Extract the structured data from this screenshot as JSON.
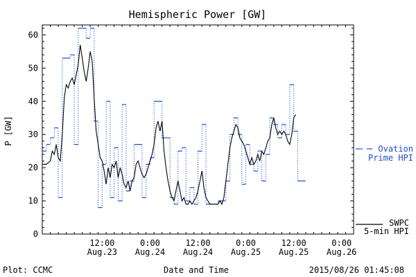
{
  "chart_data": {
    "type": "line",
    "title": "Hemispheric Power [GW]",
    "xlabel": "Date and Time",
    "ylabel": "P [GW]",
    "ylim": [
      0,
      63
    ],
    "yticks": [
      0,
      10,
      20,
      30,
      40,
      50,
      60
    ],
    "xlim": [
      "2015-08-22T21:00",
      "2015-08-26T03:00"
    ],
    "xticks": [
      {
        "t": "2015-08-23T12:00",
        "time": "12:00",
        "date": "Aug.23"
      },
      {
        "t": "2015-08-24T00:00",
        "time": "0:00",
        "date": "Aug.24"
      },
      {
        "t": "2015-08-24T12:00",
        "time": "12:00",
        "date": "Aug.24"
      },
      {
        "t": "2015-08-25T00:00",
        "time": "0:00",
        "date": "Aug.25"
      },
      {
        "t": "2015-08-25T12:00",
        "time": "12:00",
        "date": "Aug.25"
      },
      {
        "t": "2015-08-26T00:00",
        "time": "0:00",
        "date": "Aug.26"
      }
    ],
    "grid": false,
    "series": [
      {
        "name": "Ovation Prime HPI",
        "color": "#1f4fd0",
        "style": "dotted-step",
        "points": [
          [
            "2015-08-22T21:00",
            25
          ],
          [
            "2015-08-22T22:00",
            27
          ],
          [
            "2015-08-22T23:00",
            29
          ],
          [
            "2015-08-23T00:00",
            32
          ],
          [
            "2015-08-23T01:00",
            11
          ],
          [
            "2015-08-23T02:00",
            53
          ],
          [
            "2015-08-23T04:00",
            54
          ],
          [
            "2015-08-23T05:00",
            27
          ],
          [
            "2015-08-23T06:00",
            62
          ],
          [
            "2015-08-23T08:00",
            59
          ],
          [
            "2015-08-23T09:00",
            62
          ],
          [
            "2015-08-23T10:00",
            34
          ],
          [
            "2015-08-23T11:00",
            8
          ],
          [
            "2015-08-23T12:00",
            21
          ],
          [
            "2015-08-23T13:00",
            40
          ],
          [
            "2015-08-23T14:00",
            11
          ],
          [
            "2015-08-23T15:00",
            26
          ],
          [
            "2015-08-23T16:00",
            10
          ],
          [
            "2015-08-23T17:00",
            39
          ],
          [
            "2015-08-23T18:00",
            13
          ],
          [
            "2015-08-23T19:00",
            16
          ],
          [
            "2015-08-23T20:00",
            27
          ],
          [
            "2015-08-23T22:00",
            11
          ],
          [
            "2015-08-23T23:00",
            21
          ],
          [
            "2015-08-24T00:00",
            23
          ],
          [
            "2015-08-24T01:00",
            40
          ],
          [
            "2015-08-24T03:00",
            29
          ],
          [
            "2015-08-24T05:00",
            11
          ],
          [
            "2015-08-24T06:00",
            9
          ],
          [
            "2015-08-24T07:00",
            25
          ],
          [
            "2015-08-24T08:00",
            26
          ],
          [
            "2015-08-24T09:00",
            10
          ],
          [
            "2015-08-24T10:00",
            14
          ],
          [
            "2015-08-24T11:00",
            9
          ],
          [
            "2015-08-24T12:00",
            25
          ],
          [
            "2015-08-24T13:00",
            33
          ],
          [
            "2015-08-24T14:00",
            9
          ],
          [
            "2015-08-24T17:00",
            10
          ],
          [
            "2015-08-24T19:00",
            16
          ],
          [
            "2015-08-24T20:00",
            30
          ],
          [
            "2015-08-24T21:00",
            35
          ],
          [
            "2015-08-24T22:00",
            30
          ],
          [
            "2015-08-24T23:00",
            15
          ],
          [
            "2015-08-25T00:00",
            27
          ],
          [
            "2015-08-25T01:00",
            21
          ],
          [
            "2015-08-25T02:00",
            19
          ],
          [
            "2015-08-25T03:00",
            25
          ],
          [
            "2015-08-25T04:00",
            16
          ],
          [
            "2015-08-25T05:00",
            24
          ],
          [
            "2015-08-25T06:00",
            35
          ],
          [
            "2015-08-25T07:00",
            33
          ],
          [
            "2015-08-25T08:00",
            29
          ],
          [
            "2015-08-25T09:00",
            33
          ],
          [
            "2015-08-25T10:00",
            30
          ],
          [
            "2015-08-25T11:00",
            45
          ],
          [
            "2015-08-25T12:00",
            31
          ],
          [
            "2015-08-25T13:00",
            16
          ],
          [
            "2015-08-25T14:00",
            16
          ]
        ]
      },
      {
        "name": "SWPC 5-min HPI",
        "color": "#000000",
        "style": "solid",
        "points": [
          [
            "2015-08-22T21:00",
            21
          ],
          [
            "2015-08-22T22:00",
            21
          ],
          [
            "2015-08-22T23:00",
            22
          ],
          [
            "2015-08-22T23:30",
            25
          ],
          [
            "2015-08-23T00:00",
            24
          ],
          [
            "2015-08-23T00:30",
            27
          ],
          [
            "2015-08-23T01:00",
            23
          ],
          [
            "2015-08-23T01:30",
            22
          ],
          [
            "2015-08-23T02:00",
            30
          ],
          [
            "2015-08-23T02:30",
            41
          ],
          [
            "2015-08-23T03:00",
            45
          ],
          [
            "2015-08-23T03:30",
            44
          ],
          [
            "2015-08-23T04:00",
            46
          ],
          [
            "2015-08-23T04:30",
            47
          ],
          [
            "2015-08-23T05:00",
            45
          ],
          [
            "2015-08-23T05:30",
            48
          ],
          [
            "2015-08-23T06:00",
            51
          ],
          [
            "2015-08-23T06:30",
            57
          ],
          [
            "2015-08-23T07:00",
            53
          ],
          [
            "2015-08-23T07:30",
            49
          ],
          [
            "2015-08-23T08:00",
            46
          ],
          [
            "2015-08-23T08:30",
            50
          ],
          [
            "2015-08-23T09:00",
            55
          ],
          [
            "2015-08-23T09:30",
            52
          ],
          [
            "2015-08-23T10:00",
            41
          ],
          [
            "2015-08-23T10:30",
            31
          ],
          [
            "2015-08-23T11:00",
            27
          ],
          [
            "2015-08-23T11:30",
            23
          ],
          [
            "2015-08-23T12:00",
            22
          ],
          [
            "2015-08-23T12:30",
            19
          ],
          [
            "2015-08-23T13:00",
            15
          ],
          [
            "2015-08-23T13:30",
            20
          ],
          [
            "2015-08-23T14:00",
            17
          ],
          [
            "2015-08-23T14:30",
            21
          ],
          [
            "2015-08-23T15:00",
            20
          ],
          [
            "2015-08-23T15:30",
            22
          ],
          [
            "2015-08-23T16:00",
            17
          ],
          [
            "2015-08-23T16:30",
            20
          ],
          [
            "2015-08-23T17:00",
            18
          ],
          [
            "2015-08-23T17:30",
            15
          ],
          [
            "2015-08-23T18:00",
            14
          ],
          [
            "2015-08-23T18:30",
            16
          ],
          [
            "2015-08-23T19:00",
            13
          ],
          [
            "2015-08-23T19:30",
            16
          ],
          [
            "2015-08-23T20:00",
            17
          ],
          [
            "2015-08-23T20:30",
            21
          ],
          [
            "2015-08-23T21:00",
            22
          ],
          [
            "2015-08-23T21:30",
            20
          ],
          [
            "2015-08-23T22:00",
            18
          ],
          [
            "2015-08-23T22:30",
            17
          ],
          [
            "2015-08-23T23:00",
            18
          ],
          [
            "2015-08-23T23:30",
            20
          ],
          [
            "2015-08-24T00:00",
            22
          ],
          [
            "2015-08-24T00:30",
            24
          ],
          [
            "2015-08-24T01:00",
            27
          ],
          [
            "2015-08-24T01:30",
            32
          ],
          [
            "2015-08-24T02:00",
            34
          ],
          [
            "2015-08-24T02:30",
            31
          ],
          [
            "2015-08-24T03:00",
            34
          ],
          [
            "2015-08-24T03:30",
            25
          ],
          [
            "2015-08-24T04:00",
            20
          ],
          [
            "2015-08-24T04:30",
            16
          ],
          [
            "2015-08-24T05:00",
            13
          ],
          [
            "2015-08-24T05:30",
            11
          ],
          [
            "2015-08-24T06:00",
            10
          ],
          [
            "2015-08-24T06:30",
            13
          ],
          [
            "2015-08-24T07:00",
            16
          ],
          [
            "2015-08-24T07:30",
            13
          ],
          [
            "2015-08-24T08:00",
            10
          ],
          [
            "2015-08-24T08:30",
            11
          ],
          [
            "2015-08-24T09:00",
            9
          ],
          [
            "2015-08-24T09:30",
            9
          ],
          [
            "2015-08-24T10:00",
            10
          ],
          [
            "2015-08-24T10:30",
            9
          ],
          [
            "2015-08-24T11:00",
            10
          ],
          [
            "2015-08-24T11:30",
            11
          ],
          [
            "2015-08-24T12:00",
            13
          ],
          [
            "2015-08-24T12:30",
            16
          ],
          [
            "2015-08-24T13:00",
            19
          ],
          [
            "2015-08-24T13:30",
            14
          ],
          [
            "2015-08-24T14:00",
            11
          ],
          [
            "2015-08-24T14:30",
            10
          ],
          [
            "2015-08-24T15:00",
            9
          ],
          [
            "2015-08-24T15:30",
            9
          ],
          [
            "2015-08-24T16:00",
            9
          ],
          [
            "2015-08-24T17:00",
            9
          ],
          [
            "2015-08-24T17:30",
            10
          ],
          [
            "2015-08-24T18:00",
            9
          ],
          [
            "2015-08-24T18:30",
            11
          ],
          [
            "2015-08-24T19:00",
            16
          ],
          [
            "2015-08-24T19:30",
            21
          ],
          [
            "2015-08-24T20:00",
            26
          ],
          [
            "2015-08-24T20:30",
            29
          ],
          [
            "2015-08-24T21:00",
            31
          ],
          [
            "2015-08-24T21:30",
            33
          ],
          [
            "2015-08-24T22:00",
            32
          ],
          [
            "2015-08-24T22:30",
            29
          ],
          [
            "2015-08-24T23:00",
            28
          ],
          [
            "2015-08-24T23:30",
            27
          ],
          [
            "2015-08-25T00:00",
            25
          ],
          [
            "2015-08-25T00:30",
            23
          ],
          [
            "2015-08-25T01:00",
            21
          ],
          [
            "2015-08-25T01:30",
            23
          ],
          [
            "2015-08-25T02:00",
            21
          ],
          [
            "2015-08-25T02:30",
            22
          ],
          [
            "2015-08-25T03:00",
            24
          ],
          [
            "2015-08-25T03:30",
            22
          ],
          [
            "2015-08-25T04:00",
            25
          ],
          [
            "2015-08-25T04:30",
            24
          ],
          [
            "2015-08-25T05:00",
            26
          ],
          [
            "2015-08-25T05:30",
            28
          ],
          [
            "2015-08-25T06:00",
            29
          ],
          [
            "2015-08-25T06:30",
            33
          ],
          [
            "2015-08-25T07:00",
            35
          ],
          [
            "2015-08-25T07:30",
            32
          ],
          [
            "2015-08-25T08:00",
            30
          ],
          [
            "2015-08-25T08:30",
            31
          ],
          [
            "2015-08-25T09:00",
            30
          ],
          [
            "2015-08-25T09:30",
            31
          ],
          [
            "2015-08-25T10:00",
            30
          ],
          [
            "2015-08-25T10:30",
            28
          ],
          [
            "2015-08-25T11:00",
            27
          ],
          [
            "2015-08-25T11:30",
            30
          ],
          [
            "2015-08-25T12:00",
            35
          ],
          [
            "2015-08-25T12:30",
            36
          ]
        ]
      }
    ],
    "legend": [
      {
        "series": "Ovation Prime HPI",
        "line1": "Ovation",
        "line2": "Prime HPI",
        "color": "#1f4fd0"
      },
      {
        "series": "SWPC 5-min HPI",
        "line1": "SWPC",
        "line2": "5-min HPI",
        "color": "#000000"
      }
    ],
    "legend_position": "right"
  },
  "footer": {
    "plot_credit": "Plot: CCMC",
    "timestamp": "2015/08/26 01:45:08"
  }
}
